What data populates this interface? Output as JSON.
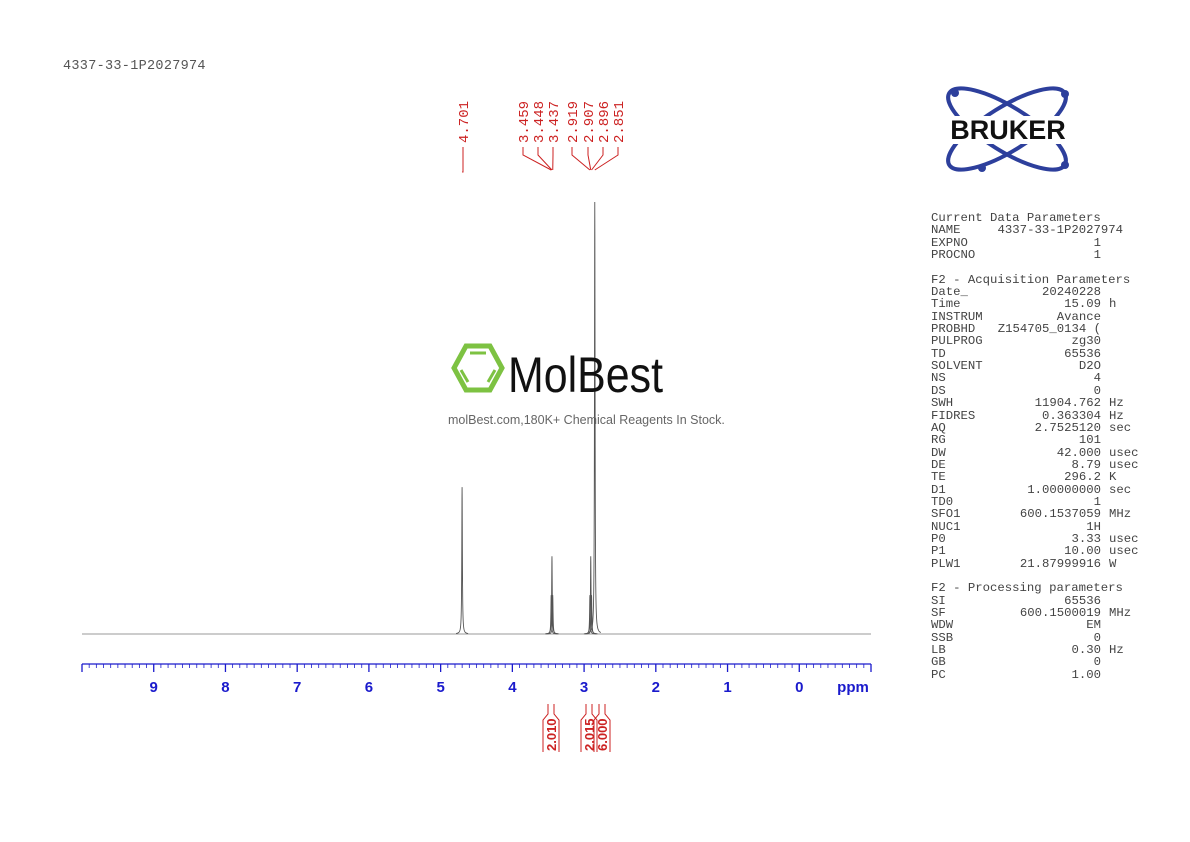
{
  "title": "4337-33-1P2027974",
  "watermark": {
    "brand": "MolBest",
    "tagline": "molBest.com,180K+ Chemical Reagents In Stock.",
    "color": "#7dc242"
  },
  "logo": {
    "text": "BRUKER",
    "color": "#2d3f9c"
  },
  "params": {
    "sections": [
      {
        "heading": "Current Data Parameters",
        "rows": [
          {
            "label": "NAME",
            "value": "4337-33-1P2027974",
            "unit": ""
          },
          {
            "label": "EXPNO",
            "value": "1",
            "unit": ""
          },
          {
            "label": "PROCNO",
            "value": "1",
            "unit": ""
          }
        ]
      },
      {
        "heading": "F2 - Acquisition Parameters",
        "rows": [
          {
            "label": "Date_",
            "value": "20240228",
            "unit": ""
          },
          {
            "label": "Time",
            "value": "15.09",
            "unit": "h"
          },
          {
            "label": "INSTRUM",
            "value": "Avance",
            "unit": ""
          },
          {
            "label": "PROBHD",
            "value": "Z154705_0134 (",
            "unit": ""
          },
          {
            "label": "PULPROG",
            "value": "zg30",
            "unit": ""
          },
          {
            "label": "TD",
            "value": "65536",
            "unit": ""
          },
          {
            "label": "SOLVENT",
            "value": "D2O",
            "unit": ""
          },
          {
            "label": "NS",
            "value": "4",
            "unit": ""
          },
          {
            "label": "DS",
            "value": "0",
            "unit": ""
          },
          {
            "label": "SWH",
            "value": "11904.762",
            "unit": "Hz"
          },
          {
            "label": "FIDRES",
            "value": "0.363304",
            "unit": "Hz"
          },
          {
            "label": "AQ",
            "value": "2.7525120",
            "unit": "sec"
          },
          {
            "label": "RG",
            "value": "101",
            "unit": ""
          },
          {
            "label": "DW",
            "value": "42.000",
            "unit": "usec"
          },
          {
            "label": "DE",
            "value": "8.79",
            "unit": "usec"
          },
          {
            "label": "TE",
            "value": "296.2",
            "unit": "K"
          },
          {
            "label": "D1",
            "value": "1.00000000",
            "unit": "sec"
          },
          {
            "label": "TD0",
            "value": "1",
            "unit": ""
          },
          {
            "label": "SFO1",
            "value": "600.1537059",
            "unit": "MHz"
          },
          {
            "label": "NUC1",
            "value": "1H",
            "unit": ""
          },
          {
            "label": "P0",
            "value": "3.33",
            "unit": "usec"
          },
          {
            "label": "P1",
            "value": "10.00",
            "unit": "usec"
          },
          {
            "label": "PLW1",
            "value": "21.87999916",
            "unit": "W"
          }
        ]
      },
      {
        "heading": "F2 - Processing parameters",
        "rows": [
          {
            "label": "SI",
            "value": "65536",
            "unit": ""
          },
          {
            "label": "SF",
            "value": "600.1500019",
            "unit": "MHz"
          },
          {
            "label": "WDW",
            "value": "EM",
            "unit": ""
          },
          {
            "label": "SSB",
            "value": "0",
            "unit": ""
          },
          {
            "label": "LB",
            "value": "0.30",
            "unit": "Hz"
          },
          {
            "label": "GB",
            "value": "0",
            "unit": ""
          },
          {
            "label": "PC",
            "value": "1.00",
            "unit": ""
          }
        ]
      }
    ]
  },
  "chart_data": {
    "type": "line",
    "xlabel": "ppm",
    "xlim": [
      10,
      -1
    ],
    "x_ticks": [
      "9",
      "8",
      "7",
      "6",
      "5",
      "4",
      "3",
      "2",
      "1",
      "0"
    ],
    "peaks": [
      {
        "ppm": 4.701,
        "intensity": 0.34
      },
      {
        "ppm": 3.459,
        "intensity": 0.09
      },
      {
        "ppm": 3.448,
        "intensity": 0.18
      },
      {
        "ppm": 3.437,
        "intensity": 0.09
      },
      {
        "ppm": 2.919,
        "intensity": 0.09
      },
      {
        "ppm": 2.907,
        "intensity": 0.18
      },
      {
        "ppm": 2.896,
        "intensity": 0.09
      },
      {
        "ppm": 2.851,
        "intensity": 1.0
      }
    ],
    "peak_labels": [
      "4.701",
      "3.459",
      "3.448",
      "3.437",
      "2.919",
      "2.907",
      "2.896",
      "2.851"
    ],
    "integrals": [
      {
        "ppm": 3.448,
        "value": "2.010"
      },
      {
        "ppm": 2.907,
        "value": "2.015"
      },
      {
        "ppm": 2.851,
        "value": "6.000"
      }
    ],
    "colors": {
      "spectrum": "#555555",
      "labels": "#cc2222",
      "axis": "#1a1acc"
    }
  }
}
